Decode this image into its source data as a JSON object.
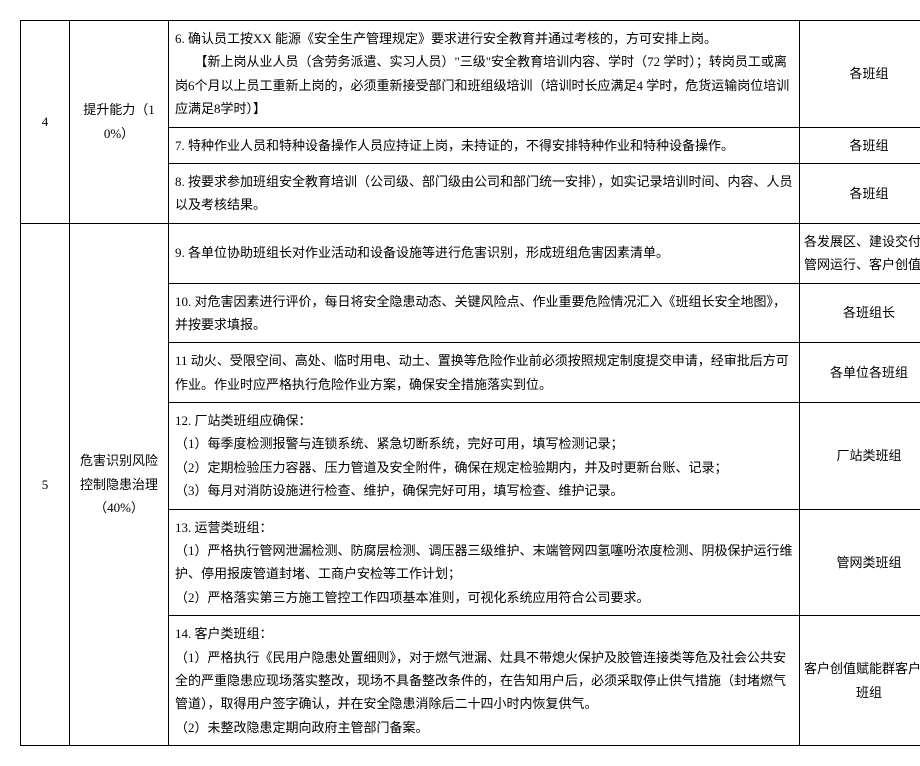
{
  "sections": [
    {
      "index": "4",
      "category": "提升能力（10%）",
      "rows": [
        {
          "content": "6. 确认员工按XX 能源《安全生产管理规定》要求进行安全教育并通过考核的，方可安排上岗。\n　　【新上岗从业人员（含劳务派遣、实习人员）\"三级\"安全教育培训内容、学时（72 学时）；转岗员工或离岗6个月以上员工重新上岗的，必须重新接受部门和班组级培训（培训时长应满足4 学时，危货运输岗位培训应满足8学时）】",
          "owner": "各班组"
        },
        {
          "content": "7. 特种作业人员和特种设备操作人员应持证上岗，未持证的，不得安排特种作业和特种设备操作。",
          "owner": "各班组"
        },
        {
          "content": "8. 按要求参加班组安全教育培训（公司级、部门级由公司和部门统一安排），如实记录培训时间、内容、人员以及考核结果。",
          "owner": "各班组"
        }
      ]
    },
    {
      "index": "5",
      "category": "危害识别风险控制隐患治理（40%）",
      "rows": [
        {
          "content": "9. 各单位协助班组长对作业活动和设备设施等进行危害识别，形成班组危害因素清单。",
          "owner": "各发展区、建设交付、管网运行、客户创值群"
        },
        {
          "content": "10. 对危害因素进行评价，每日将安全隐患动态、关键风险点、作业重要危险情况汇入《班组长安全地图》，并按要求填报。",
          "owner": "各班组长"
        },
        {
          "content": "11 动火、受限空间、高处、临时用电、动土、置换等危险作业前必须按照规定制度提交申请，经审批后方可作业。作业时应严格执行危险作业方案，确保安全措施落实到位。",
          "owner": "各单位各班组"
        },
        {
          "content": "12. 厂站类班组应确保：\n（1）每季度检测报警与连锁系统、紧急切断系统，完好可用，填写检测记录；\n（2）定期检验压力容器、压力管道及安全附件，确保在规定检验期内，并及时更新台账、记录；\n（3）每月对消防设施进行检查、维护，确保完好可用，填写检查、维护记录。",
          "owner": "厂站类班组"
        },
        {
          "content": "13. 运营类班组：\n（1）严格执行管网泄漏检测、防腐层检测、调压器三级维护、末端管网四氢噻吩浓度检测、阴极保护运行维护、停用报废管道封堵、工商户安检等工作计划；\n（2）严格落实第三方施工管控工作四项基本准则，可视化系统应用符合公司要求。",
          "owner": "管网类班组"
        },
        {
          "content": "14. 客户类班组：\n（1）严格执行《民用户隐患处置细则》，对于燃气泄漏、灶具不带熄火保护及胶管连接类等危及社会公共安全的严重隐患应现场落实整改，现场不具备整改条件的，在告知用户后，必须采取停止供气措施（封堵燃气管道），取得用户签字确认，并在安全隐患消除后二十四小时内恢复供气。\n（2）未整改隐患定期向政府主管部门备案。",
          "owner": "客户创值赋能群客户类班组"
        }
      ]
    }
  ]
}
